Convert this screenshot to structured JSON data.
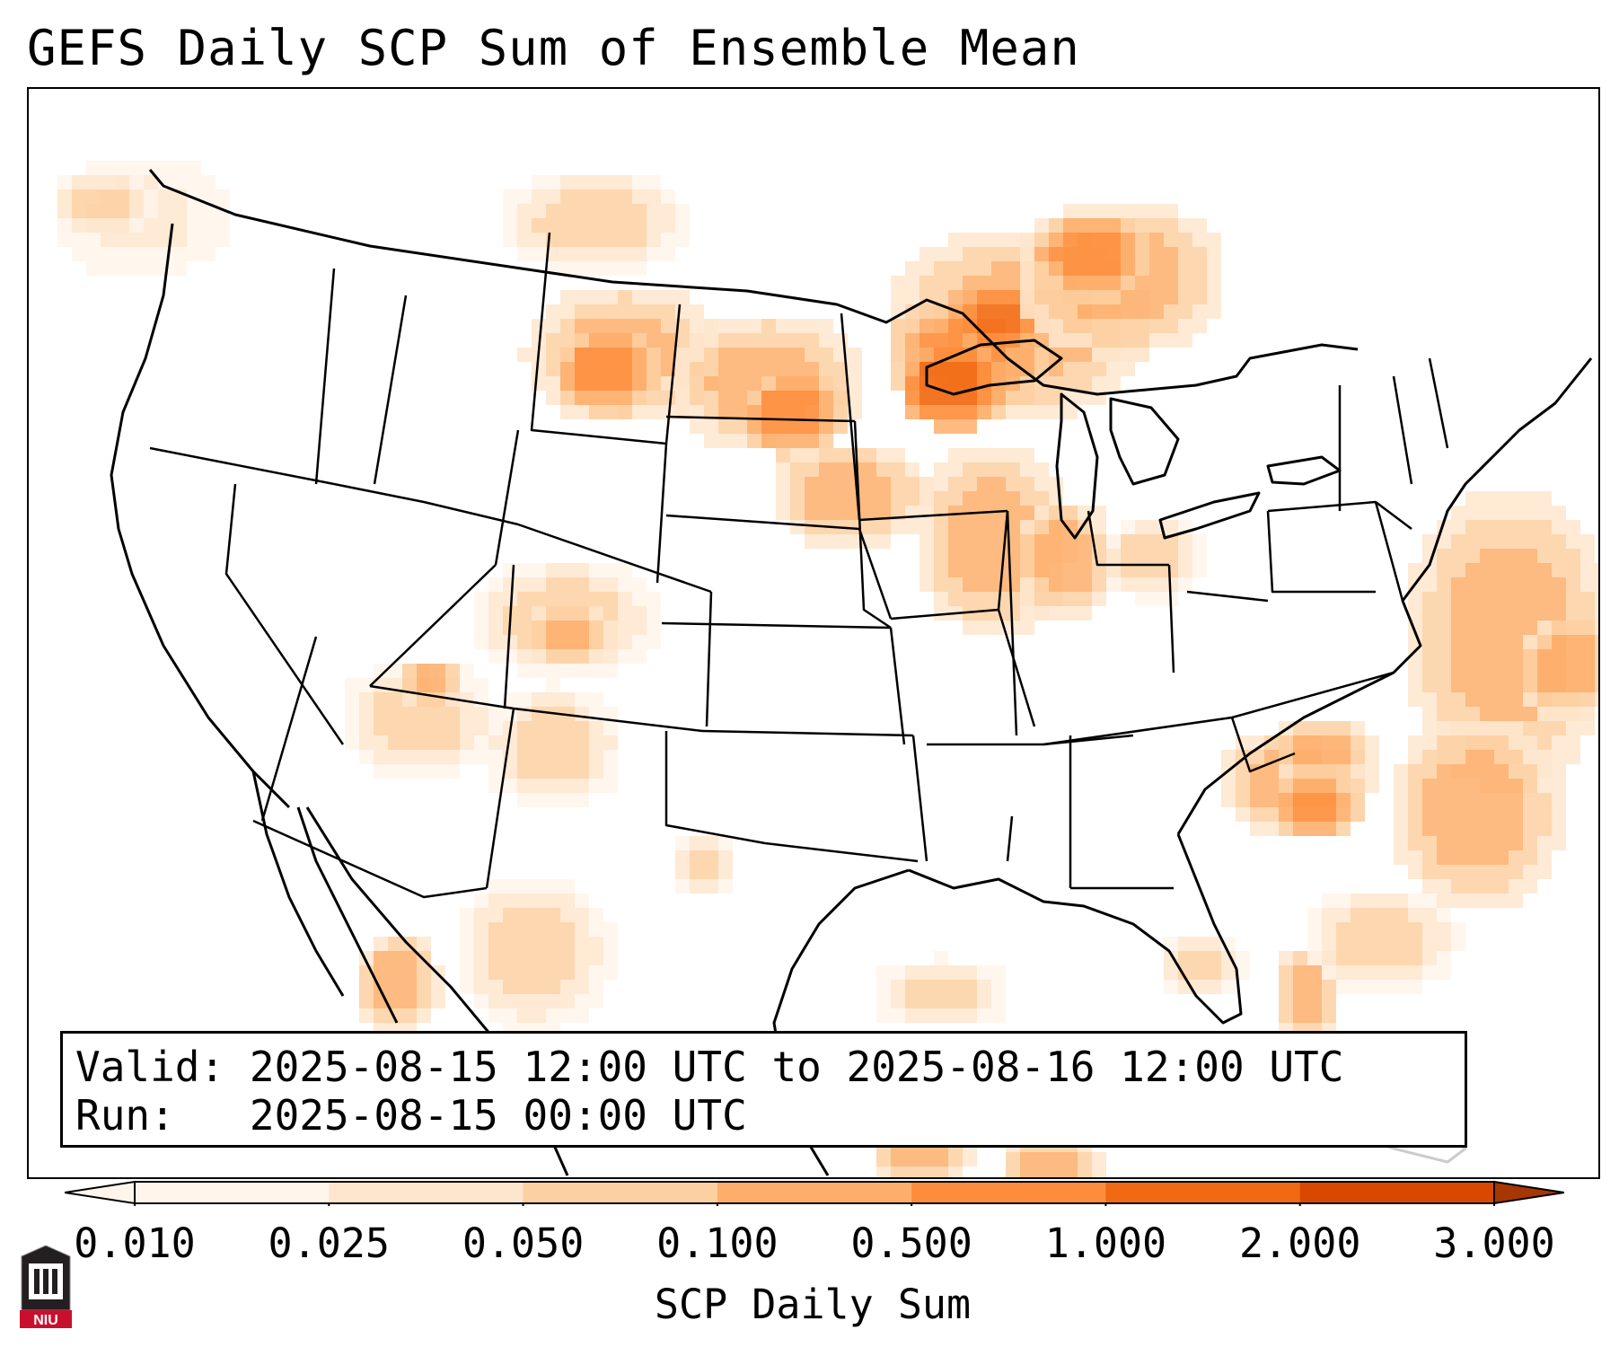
{
  "title": "GEFS Daily SCP Sum of Ensemble Mean",
  "info": {
    "valid_label": "Valid:",
    "valid_value": "2025-08-15 12:00 UTC to 2025-08-16 12:00 UTC",
    "run_label": "Run:",
    "run_value": "2025-08-15 00:00 UTC"
  },
  "colorbar": {
    "label": "SCP Daily Sum",
    "ticks": [
      "0.010",
      "0.025",
      "0.050",
      "0.100",
      "0.500",
      "1.000",
      "2.000",
      "3.000"
    ],
    "colors": [
      "#fff5eb",
      "#fee6ce",
      "#fdd0a2",
      "#fdae6b",
      "#fd8d3c",
      "#f16913",
      "#d94801",
      "#a63603"
    ],
    "extend": "both"
  },
  "logo": {
    "text": "NIU"
  },
  "map_data": {
    "region": "Continental United States",
    "variable": "SCP Daily Sum",
    "field_regions": [
      {
        "name": "Upper Midwest / Minnesota-Wisconsin-Lake Superior",
        "level": "1.000"
      },
      {
        "name": "Ontario north of Lake Superior",
        "level": "0.500"
      },
      {
        "name": "Dakotas and eastern Montana",
        "level": "0.100"
      },
      {
        "name": "Iowa, Illinois, Indiana, Ohio",
        "level": "0.100"
      },
      {
        "name": "Colorado, New Mexico, Arizona",
        "level": "0.050"
      },
      {
        "name": "Carolinas and Georgia",
        "level": "0.100"
      },
      {
        "name": "Western Atlantic off Mid-Atlantic coast",
        "level": "0.100"
      },
      {
        "name": "Southern Florida",
        "level": "0.100"
      },
      {
        "name": "Northern Mexico / Sierra Madre",
        "level": "0.050"
      },
      {
        "name": "Pacific Northwest coast",
        "level": "0.025"
      }
    ]
  }
}
